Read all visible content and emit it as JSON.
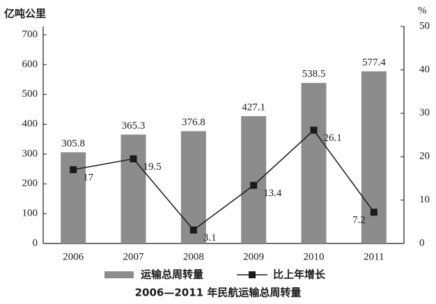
{
  "chart_data": {
    "type": "bar-line",
    "title": "2006—2011 年民航运输总周转量",
    "ylabel": "亿吨公里",
    "y2label": "%",
    "categories": [
      "2006",
      "2007",
      "2008",
      "2009",
      "2010",
      "2011"
    ],
    "series": [
      {
        "name": "运输总周转量",
        "type": "bar",
        "color": "#8c8c8c",
        "values": [
          305.8,
          365.3,
          376.8,
          427.1,
          538.5,
          577.4
        ]
      },
      {
        "name": "比上年增长",
        "type": "line",
        "axis": "y2",
        "color": "#1a1a1a",
        "values": [
          17,
          19.5,
          3.1,
          13.4,
          26.1,
          7.2
        ]
      }
    ],
    "ylim": [
      0,
      700
    ],
    "yticks": [
      0,
      100,
      200,
      300,
      400,
      500,
      600,
      700
    ],
    "y2lim": [
      0,
      50
    ],
    "y2ticks": [
      0,
      10,
      20,
      30,
      40,
      50
    ],
    "legend": "bottom"
  }
}
